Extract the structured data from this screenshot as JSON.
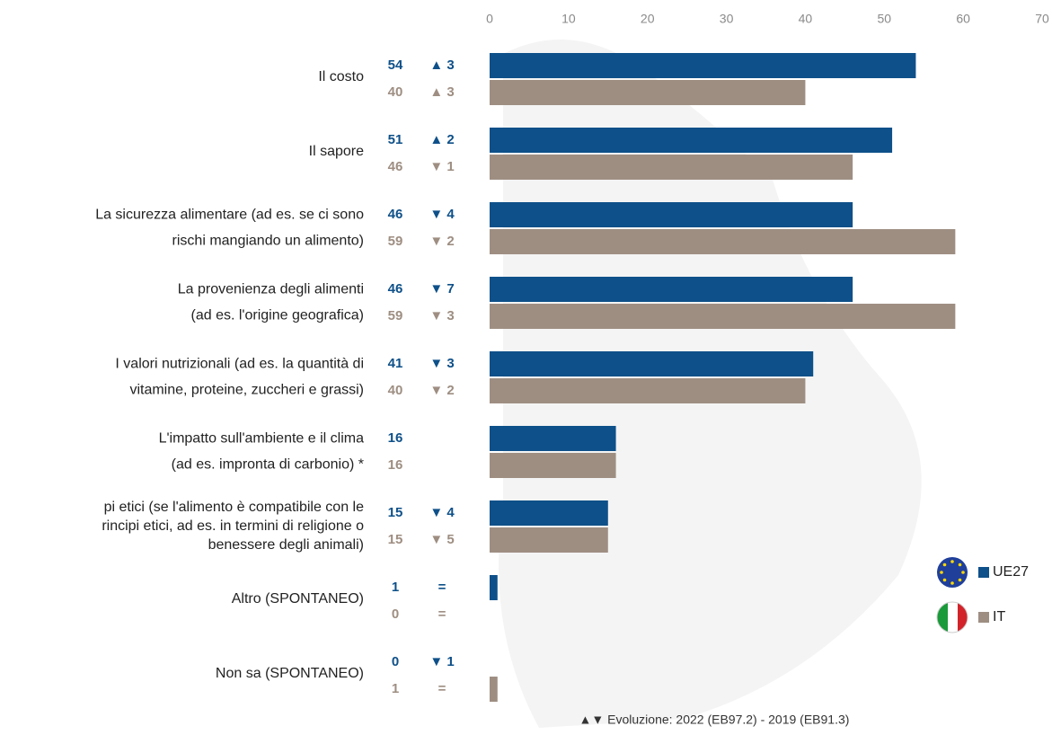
{
  "chart_data": {
    "type": "bar",
    "orientation": "horizontal",
    "categories": [
      [
        "Il costo"
      ],
      [
        "Il sapore"
      ],
      [
        "La sicurezza alimentare (ad es. se ci sono",
        "rischi mangiando un alimento)"
      ],
      [
        "La provenienza degli alimenti",
        "(ad es. l'origine geografica)"
      ],
      [
        "I valori nutrizionali (ad es. la quantità di",
        "vitamine, proteine, zuccheri e grassi)"
      ],
      [
        "L'impatto sull'ambiente e il clima",
        "(ad es. impronta di carbonio) *"
      ],
      [
        "pi etici (se l'alimento è compatibile con le",
        "rincipi etici, ad es. in termini di religione o",
        "benessere degli animali)"
      ],
      [
        "Altro (SPONTANEO)"
      ],
      [
        "Non sa (SPONTANEO)"
      ]
    ],
    "series": [
      {
        "name": "UE27",
        "color": "#0e5089",
        "values": [
          54,
          51,
          46,
          46,
          41,
          16,
          15,
          1,
          0
        ],
        "evolution": [
          "▲ 3",
          "▲ 2",
          "▼ 4",
          "▼ 7",
          "▼ 3",
          null,
          "▼ 4",
          "=",
          "▼ 1"
        ]
      },
      {
        "name": "IT",
        "color": "#9e8e82",
        "values": [
          40,
          46,
          59,
          59,
          40,
          16,
          15,
          0,
          1
        ],
        "evolution": [
          "▲ 3",
          "▼ 1",
          "▼ 2",
          "▼ 3",
          "▼ 2",
          null,
          "▼ 5",
          "=",
          "="
        ]
      }
    ],
    "xlim": [
      0,
      70
    ],
    "xticks": [
      0,
      10,
      20,
      30,
      40,
      50,
      60,
      70
    ],
    "footnote": "▲▼ Evoluzione:  2022 (EB97.2) - 2019 (EB91.3)"
  }
}
